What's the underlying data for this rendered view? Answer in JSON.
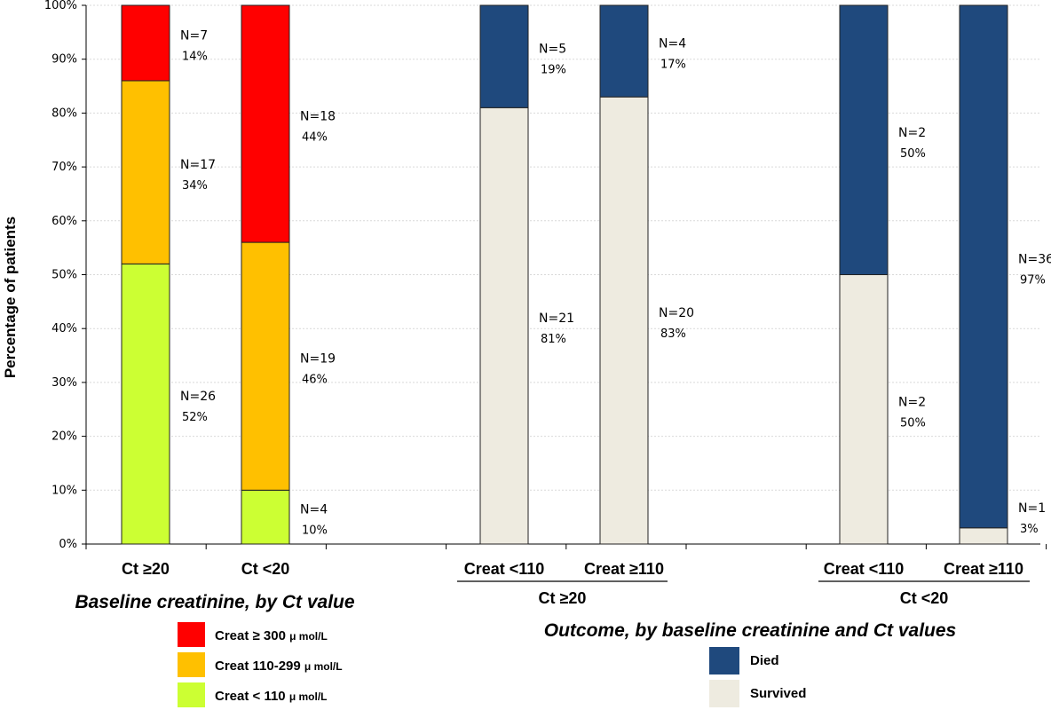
{
  "chart_data": {
    "type": "bar",
    "stacked": true,
    "ylabel": "Percentage of patients",
    "ylim": [
      0,
      100
    ],
    "yticks": [
      "0%",
      "10%",
      "20%",
      "30%",
      "40%",
      "50%",
      "60%",
      "70%",
      "80%",
      "90%",
      "100%"
    ],
    "panel_titles": {
      "left": "Baseline creatinine, by Ct value",
      "right": "Outcome, by baseline creatinine and Ct values"
    },
    "left_panel": {
      "categories": [
        "Ct ≥20",
        "Ct <20"
      ],
      "series": [
        {
          "name": "Creat < 110",
          "unit": "μ mol/L",
          "color": "#ccff33",
          "values": [
            52,
            10
          ],
          "labels": [
            [
              "N=26",
              "52%"
            ],
            [
              "N=4",
              "10%"
            ]
          ]
        },
        {
          "name": "Creat 110-299",
          "unit": "μ mol/L",
          "color": "#ffc000",
          "values": [
            34,
            46
          ],
          "labels": [
            [
              "N=17",
              "34%"
            ],
            [
              "N=19",
              "46%"
            ]
          ]
        },
        {
          "name": "Creat ≥ 300",
          "unit": "μ mol/L",
          "color": "#ff0000",
          "values": [
            14,
            44
          ],
          "labels": [
            [
              "N=7",
              "14%"
            ],
            [
              "N=18",
              "44%"
            ]
          ]
        }
      ]
    },
    "right_panel": {
      "groups": [
        {
          "name": "Ct ≥20",
          "categories": [
            "Creat <110",
            "Creat ≥110"
          ]
        },
        {
          "name": "Ct <20",
          "categories": [
            "Creat <110",
            "Creat ≥110"
          ]
        }
      ],
      "series": [
        {
          "name": "Survived",
          "color": "#eeebe0",
          "values": [
            81,
            83,
            50,
            3
          ],
          "labels": [
            [
              "N=21",
              "81%"
            ],
            [
              "N=20",
              "83%"
            ],
            [
              "N=2",
              "50%"
            ],
            [
              "N=1",
              "3%"
            ]
          ]
        },
        {
          "name": "Died",
          "color": "#1f497d",
          "values": [
            19,
            17,
            50,
            97
          ],
          "labels": [
            [
              "N=5",
              "19%"
            ],
            [
              "N=4",
              "17%"
            ],
            [
              "N=2",
              "50%"
            ],
            [
              "N=36",
              "97%"
            ]
          ]
        }
      ]
    },
    "legend_left": [
      {
        "label": "Creat ≥ 300",
        "unit": "μ mol/L",
        "color": "#ff0000"
      },
      {
        "label": "Creat 110-299",
        "unit": "μ mol/L",
        "color": "#ffc000"
      },
      {
        "label": "Creat < 110",
        "unit": "μ mol/L",
        "color": "#ccff33"
      }
    ],
    "legend_right": [
      {
        "label": "Died",
        "color": "#1f497d"
      },
      {
        "label": "Survived",
        "color": "#eeebe0"
      }
    ]
  }
}
